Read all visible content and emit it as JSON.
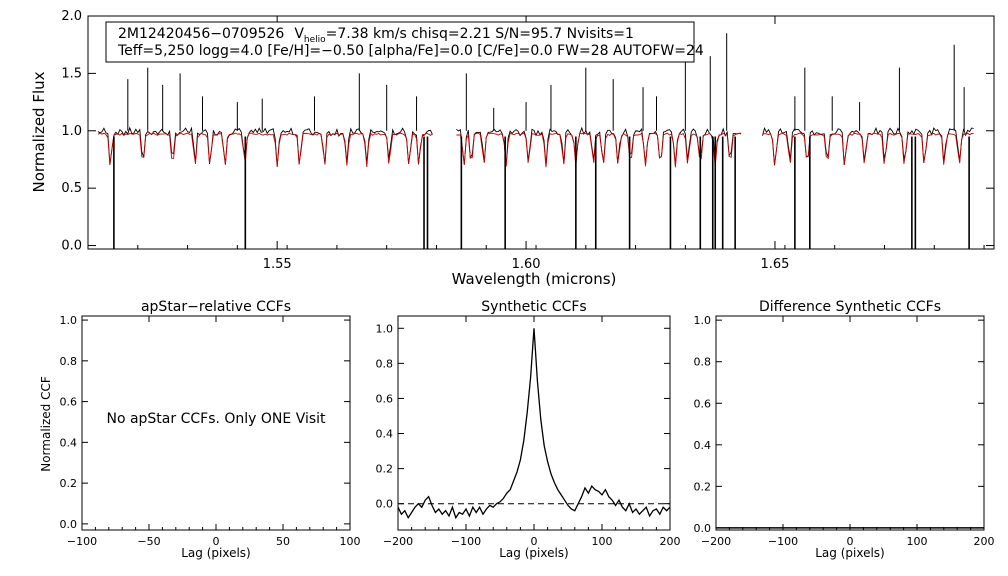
{
  "chart_data": [
    {
      "id": "spectrum",
      "type": "line",
      "xlabel": "Wavelength (microns)",
      "ylabel": "Normalized Flux",
      "xlim": [
        1.512,
        1.694
      ],
      "ylim": [
        -0.03,
        2.0
      ],
      "xticks": [
        1.55,
        1.6,
        1.65
      ],
      "xtick_labels": [
        "1.55",
        "1.60",
        "1.65"
      ],
      "yticks": [
        0.0,
        0.5,
        1.0,
        1.5,
        2.0
      ],
      "ytick_labels": [
        "0.0",
        "0.5",
        "1.0",
        "1.5",
        "2.0"
      ],
      "info": {
        "line1": {
          "star": "2M12420456−0709526",
          "v_prefix": "V",
          "v_sub": "helio",
          "v_rest": "=7.38 km/s  chisq=2.21  S/N=95.7  Nvisits=1"
        },
        "line2": "Teff=5,250 logg=4.0 [Fe/H]=−0.50 [alpha/Fe]=0.0 [C/Fe]=0.0 FW=28 AUTOFW=24"
      },
      "chips": [
        [
          1.514,
          1.5815
        ],
        [
          1.586,
          1.6435
        ],
        [
          1.6475,
          1.69
        ]
      ],
      "series": [
        {
          "name": "observed",
          "color": "#000000"
        },
        {
          "name": "synthetic",
          "color": "#cc0000"
        }
      ],
      "emission_spikes": [
        [
          1.52,
          1.45
        ],
        [
          1.524,
          1.55
        ],
        [
          1.527,
          1.4
        ],
        [
          1.5305,
          1.5
        ],
        [
          1.535,
          1.3
        ],
        [
          1.542,
          1.25
        ],
        [
          1.547,
          1.28
        ],
        [
          1.5575,
          1.3
        ],
        [
          1.5665,
          1.5
        ],
        [
          1.572,
          1.4
        ],
        [
          1.578,
          1.3
        ],
        [
          1.588,
          1.5
        ],
        [
          1.5935,
          1.2
        ],
        [
          1.6,
          1.25
        ],
        [
          1.605,
          1.4
        ],
        [
          1.612,
          1.55
        ],
        [
          1.6175,
          1.45
        ],
        [
          1.6235,
          1.38
        ],
        [
          1.6262,
          1.3
        ],
        [
          1.632,
          1.7
        ],
        [
          1.637,
          1.65
        ],
        [
          1.6403,
          1.85
        ],
        [
          1.654,
          1.3
        ],
        [
          1.656,
          1.55
        ],
        [
          1.6615,
          1.3
        ],
        [
          1.667,
          1.25
        ],
        [
          1.675,
          1.55
        ],
        [
          1.686,
          1.75
        ],
        [
          1.688,
          1.38
        ]
      ],
      "bad_pixels": [
        1.5172,
        1.5436,
        1.5795,
        1.5802,
        1.587,
        1.5958,
        1.61,
        1.614,
        1.6208,
        1.629,
        1.635,
        1.6375,
        1.638,
        1.6395,
        1.642,
        1.654,
        1.657,
        1.6775,
        1.6782,
        1.689
      ],
      "absorption_lines": [
        1.5165,
        1.523,
        1.529,
        1.5335,
        1.5365,
        1.5395,
        1.5435,
        1.55,
        1.5545,
        1.5595,
        1.564,
        1.568,
        1.5725,
        1.5765,
        1.5785,
        1.5875,
        1.589,
        1.5915,
        1.596,
        1.6005,
        1.604,
        1.6075,
        1.61,
        1.6135,
        1.6155,
        1.6185,
        1.621,
        1.624,
        1.627,
        1.63,
        1.6325,
        1.635,
        1.638,
        1.641,
        1.65,
        1.653,
        1.6565,
        1.6605,
        1.664,
        1.668,
        1.672,
        1.676,
        1.68,
        1.684,
        1.687
      ]
    },
    {
      "id": "apstar-ccf",
      "type": "line",
      "title": "apStar−relative CCFs",
      "xlabel": "Lag (pixels)",
      "ylabel": "Normalized CCF",
      "xlim": [
        -100,
        100
      ],
      "ylim": [
        -0.03,
        1.02
      ],
      "xticks": [
        -100,
        -50,
        0,
        50,
        100
      ],
      "xtick_labels": [
        "−100",
        "−50",
        "0",
        "50",
        "100"
      ],
      "yticks": [
        0.0,
        0.2,
        0.4,
        0.6,
        0.8,
        1.0
      ],
      "ytick_labels": [
        "0.0",
        "0.2",
        "0.4",
        "0.6",
        "0.8",
        "1.0"
      ],
      "notice": "No apStar CCFs.  Only ONE Visit"
    },
    {
      "id": "synthetic-ccf",
      "type": "line",
      "title": "Synthetic CCFs",
      "xlabel": "Lag (pixels)",
      "xlim": [
        -200,
        200
      ],
      "ylim": [
        -0.15,
        1.07
      ],
      "xticks": [
        -200,
        -100,
        0,
        100,
        200
      ],
      "xtick_labels": [
        "−200",
        "−100",
        "0",
        "100",
        "200"
      ],
      "yticks": [
        0.0,
        0.2,
        0.4,
        0.6,
        0.8,
        1.0
      ],
      "ytick_labels": [
        "0.0",
        "0.2",
        "0.4",
        "0.6",
        "0.8",
        "1.0"
      ],
      "reference_line_y": 0.0,
      "ccf": {
        "x": [
          -200,
          -195,
          -190,
          -185,
          -180,
          -175,
          -170,
          -165,
          -160,
          -155,
          -150,
          -145,
          -140,
          -135,
          -130,
          -125,
          -120,
          -115,
          -110,
          -105,
          -100,
          -95,
          -90,
          -85,
          -80,
          -75,
          -70,
          -65,
          -60,
          -55,
          -50,
          -45,
          -40,
          -35,
          -30,
          -25,
          -20,
          -15,
          -10,
          -5,
          0,
          5,
          10,
          15,
          20,
          25,
          30,
          35,
          40,
          45,
          50,
          55,
          60,
          65,
          70,
          75,
          80,
          85,
          90,
          95,
          100,
          105,
          110,
          115,
          120,
          125,
          130,
          135,
          140,
          145,
          150,
          155,
          160,
          165,
          170,
          175,
          180,
          185,
          190,
          195,
          200
        ],
        "y": [
          -0.02,
          -0.06,
          -0.04,
          -0.08,
          -0.05,
          -0.02,
          0.0,
          -0.02,
          0.02,
          0.04,
          -0.01,
          -0.05,
          -0.03,
          -0.06,
          -0.04,
          -0.07,
          -0.02,
          -0.08,
          -0.05,
          -0.06,
          -0.03,
          -0.07,
          -0.02,
          -0.05,
          -0.02,
          -0.06,
          -0.03,
          -0.01,
          -0.02,
          0.0,
          0.01,
          0.03,
          0.06,
          0.08,
          0.13,
          0.18,
          0.25,
          0.36,
          0.52,
          0.72,
          1.0,
          0.7,
          0.48,
          0.33,
          0.24,
          0.17,
          0.12,
          0.08,
          0.05,
          0.02,
          -0.01,
          -0.03,
          -0.04,
          0.0,
          0.04,
          0.09,
          0.06,
          0.1,
          0.08,
          0.07,
          0.05,
          0.08,
          0.04,
          0.02,
          -0.01,
          0.02,
          -0.02,
          -0.04,
          0.0,
          -0.05,
          -0.03,
          -0.06,
          -0.04,
          -0.02,
          -0.07,
          -0.04,
          -0.03,
          -0.06,
          -0.02,
          -0.04,
          -0.02
        ]
      }
    },
    {
      "id": "difference-ccf",
      "type": "line",
      "title": "Difference Synthetic CCFs",
      "xlabel": "Lag (pixels)",
      "xlim": [
        -200,
        200
      ],
      "ylim": [
        -0.01,
        1.02
      ],
      "xticks": [
        -200,
        -100,
        0,
        100,
        200
      ],
      "xtick_labels": [
        "−200",
        "−100",
        "0",
        "100",
        "200"
      ],
      "yticks": [
        0.0,
        0.2,
        0.4,
        0.6,
        0.8,
        1.0
      ],
      "ytick_labels": [
        "0.0",
        "0.2",
        "0.4",
        "0.6",
        "0.8",
        "1.0"
      ],
      "ccf": {
        "y_constant": 0.0
      }
    }
  ]
}
